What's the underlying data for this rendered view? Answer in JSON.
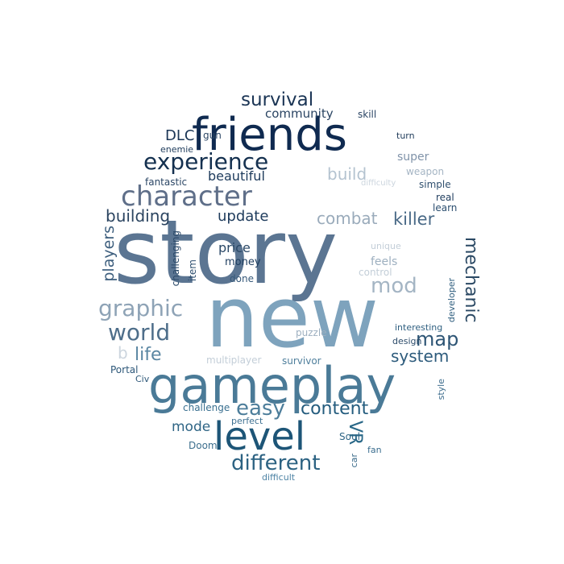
{
  "words": [
    {
      "id": "story",
      "text": "story",
      "color": "#5b7592"
    },
    {
      "id": "new",
      "text": "new",
      "color": "#7ea3bd"
    },
    {
      "id": "gameplay",
      "text": "gameplay",
      "color": "#4a7a97"
    },
    {
      "id": "friends",
      "text": "friends",
      "color": "#0f2a50"
    },
    {
      "id": "level",
      "text": "level",
      "color": "#1d5577"
    },
    {
      "id": "character",
      "text": "character",
      "color": "#5f6f89"
    },
    {
      "id": "experience",
      "text": "experience",
      "color": "#14304f"
    },
    {
      "id": "survival",
      "text": "survival",
      "color": "#1a3454"
    },
    {
      "id": "graphic",
      "text": "graphic",
      "color": "#8ea3b6"
    },
    {
      "id": "world",
      "text": "world",
      "color": "#4e6e8a"
    },
    {
      "id": "different",
      "text": "different",
      "color": "#2c6282"
    },
    {
      "id": "easy",
      "text": "easy",
      "color": "#4d7e9b"
    },
    {
      "id": "content",
      "text": "content",
      "color": "#245c7e"
    },
    {
      "id": "mechanic",
      "text": "mechanic",
      "color": "#2b4964"
    },
    {
      "id": "mod",
      "text": "mod",
      "color": "#a4b5c4"
    },
    {
      "id": "map",
      "text": "map",
      "color": "#2e5575"
    },
    {
      "id": "system",
      "text": "system",
      "color": "#2d5b7c"
    },
    {
      "id": "killer",
      "text": "killer",
      "color": "#4a6a87"
    },
    {
      "id": "combat",
      "text": "combat",
      "color": "#9aabbb"
    },
    {
      "id": "build",
      "text": "build",
      "color": "#b4c3d0"
    },
    {
      "id": "building",
      "text": "building",
      "color": "#2b4460"
    },
    {
      "id": "update",
      "text": "update",
      "color": "#1e3b5c"
    },
    {
      "id": "players",
      "text": "players",
      "color": "#3e5f7e"
    },
    {
      "id": "life",
      "text": "life",
      "color": "#5a86a2"
    },
    {
      "id": "beautiful",
      "text": "beautiful",
      "color": "#1e3b5c"
    },
    {
      "id": "community",
      "text": "community",
      "color": "#2a4462"
    },
    {
      "id": "DLC",
      "text": "DLC",
      "color": "#1a3555"
    },
    {
      "id": "mode",
      "text": "mode",
      "color": "#2f6585"
    },
    {
      "id": "VR",
      "text": "VR",
      "color": "#2a6888"
    },
    {
      "id": "price",
      "text": "price",
      "color": "#2b4967"
    },
    {
      "id": "money",
      "text": "money",
      "color": "#1f3e60"
    },
    {
      "id": "done",
      "text": "done",
      "color": "#36597a"
    },
    {
      "id": "item",
      "text": "item",
      "color": "#2e4f70"
    },
    {
      "id": "challenging",
      "text": "challenging",
      "color": "#2c4a6a"
    },
    {
      "id": "feels",
      "text": "feels",
      "color": "#9eb0c0"
    },
    {
      "id": "control",
      "text": "control",
      "color": "#c3ced8"
    },
    {
      "id": "unique",
      "text": "unique",
      "color": "#c3ced8"
    },
    {
      "id": "super",
      "text": "super",
      "color": "#8093a9"
    },
    {
      "id": "weapon",
      "text": "weapon",
      "color": "#a5b5c4"
    },
    {
      "id": "difficulty",
      "text": "difficulty",
      "color": "#ccd5de"
    },
    {
      "id": "simple",
      "text": "simple",
      "color": "#30506f"
    },
    {
      "id": "real",
      "text": "real",
      "color": "#1f3c5e"
    },
    {
      "id": "learn",
      "text": "learn",
      "color": "#2b4e6f"
    },
    {
      "id": "skill",
      "text": "skill",
      "color": "#2d4766"
    },
    {
      "id": "turn",
      "text": "turn",
      "color": "#1f3b5a"
    },
    {
      "id": "gun",
      "text": "gun",
      "color": "#2b4665"
    },
    {
      "id": "enemie",
      "text": "enemie",
      "color": "#1e3b5b"
    },
    {
      "id": "fantastic",
      "text": "fantastic",
      "color": "#2b4665"
    },
    {
      "id": "developer",
      "text": "developer",
      "color": "#2d5c7d"
    },
    {
      "id": "interesting",
      "text": "interesting",
      "color": "#2f5f80"
    },
    {
      "id": "design",
      "text": "design",
      "color": "#2c4b6a"
    },
    {
      "id": "puzzle",
      "text": "puzzle",
      "color": "#9eb0c0"
    },
    {
      "id": "multiplayer",
      "text": "multiplayer",
      "color": "#c3ced8"
    },
    {
      "id": "survivor",
      "text": "survivor",
      "color": "#4f7f9c"
    },
    {
      "id": "style",
      "text": "style",
      "color": "#3e6d8d"
    },
    {
      "id": "b",
      "text": "b",
      "color": "#ccd5de"
    },
    {
      "id": "Portal",
      "text": "Portal",
      "color": "#2e5879"
    },
    {
      "id": "Civ",
      "text": "Civ",
      "color": "#2e5879"
    },
    {
      "id": "challenge",
      "text": "challenge",
      "color": "#3a7090"
    },
    {
      "id": "perfect",
      "text": "perfect",
      "color": "#3f7192"
    },
    {
      "id": "Doom",
      "text": "Doom",
      "color": "#3e6f8e"
    },
    {
      "id": "Soul",
      "text": "Soul",
      "color": "#2f6585"
    },
    {
      "id": "car",
      "text": "car",
      "color": "#3b6b8a"
    },
    {
      "id": "fan",
      "text": "fan",
      "color": "#3b6e8f"
    },
    {
      "id": "difficult",
      "text": "difficult",
      "color": "#4f84a5"
    }
  ]
}
